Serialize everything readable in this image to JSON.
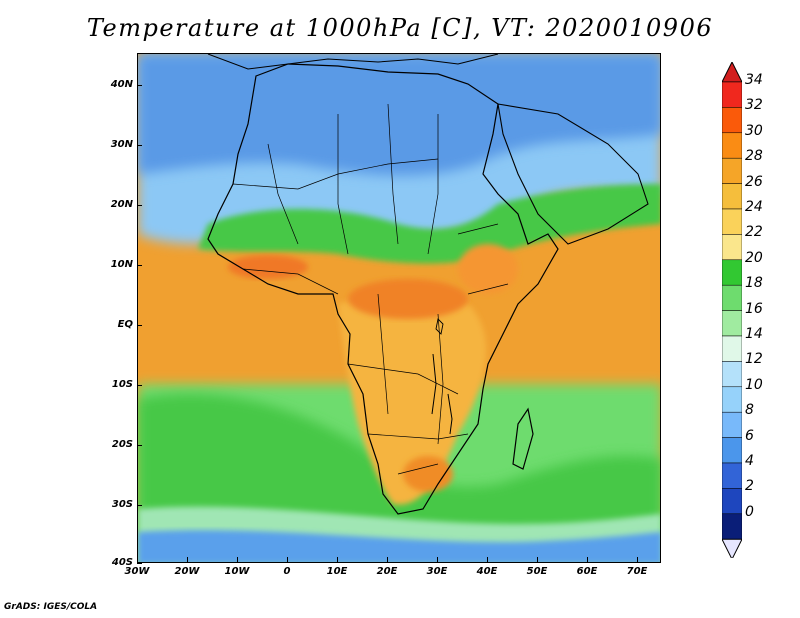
{
  "title": "Temperature at 1000hPa [C], VT: 2020010906",
  "footer": "GrADS: IGES/COLA",
  "lat_labels": [
    "40N",
    "30N",
    "20N",
    "10N",
    "EQ",
    "10S",
    "20S",
    "30S",
    "40S"
  ],
  "lon_labels": [
    "30W",
    "20W",
    "10W",
    "0",
    "10E",
    "20E",
    "30E",
    "40E",
    "50E",
    "60E",
    "70E"
  ],
  "colorbar": {
    "labels": [
      "34",
      "32",
      "30",
      "28",
      "26",
      "24",
      "22",
      "20",
      "18",
      "16",
      "14",
      "12",
      "10",
      "8",
      "6",
      "4",
      "2",
      "0"
    ],
    "colors_top_to_bottom": [
      "#f0281e",
      "#fa5a0a",
      "#fa8c14",
      "#f5a528",
      "#f5be3c",
      "#fad25a",
      "#fae68c",
      "#32c832",
      "#6edc6e",
      "#a0eba0",
      "#e0f8e8",
      "#b4e1fa",
      "#96d2fa",
      "#78b9fa",
      "#4b96eb",
      "#3264d7",
      "#1e46be",
      "#0a1e78"
    ],
    "top_arrow_color": "#d21e1e",
    "bottom_arrow_color": "#e6e6ff"
  },
  "map": {
    "ocean_color": "#f0a030",
    "fields": {
      "north_cold": "#78b4f0",
      "sahara_cold": "#8cc8f5",
      "sahel_green": "#46c846",
      "tropical_warm": "#f5a028",
      "hot_core": "#f0781e",
      "south_ocean_green": "#6edc6e",
      "far_south_cold": "#5aa0eb"
    }
  }
}
